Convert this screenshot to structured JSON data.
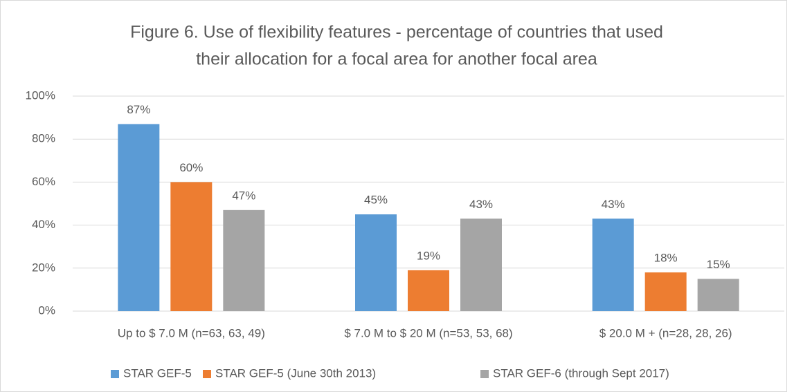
{
  "chart_data": {
    "type": "bar",
    "title": [
      "Figure 6. Use of flexibility features - percentage of countries that used",
      "their allocation for a focal area for another focal area"
    ],
    "categories": [
      "Up to $ 7.0 M (n=63, 63, 49)",
      "$ 7.0 M to $ 20 M (n=53, 53, 68)",
      "$ 20.0 M + (n=28, 28, 26)"
    ],
    "series": [
      {
        "name": "STAR GEF-5",
        "color": "#5b9bd5",
        "values": [
          87,
          45,
          43
        ],
        "value_labels": [
          "87%",
          "45%",
          "43%"
        ]
      },
      {
        "name": "STAR GEF-5 (June 30th 2013)",
        "color": "#ed7d31",
        "values": [
          60,
          19,
          18
        ],
        "value_labels": [
          "60%",
          "19%",
          "18%"
        ]
      },
      {
        "name": "STAR GEF-6 (through Sept 2017)",
        "color": "#a5a5a5",
        "values": [
          47,
          43,
          15
        ],
        "value_labels": [
          "47%",
          "43%",
          "15%"
        ]
      }
    ],
    "ylim": [
      0,
      100
    ],
    "yticks": [
      {
        "value": 0,
        "label": "0%"
      },
      {
        "value": 20,
        "label": "20%"
      },
      {
        "value": 40,
        "label": "40%"
      },
      {
        "value": 60,
        "label": "60%"
      },
      {
        "value": 80,
        "label": "80%"
      },
      {
        "value": 100,
        "label": "100%"
      }
    ],
    "grid": true,
    "legend": "bottom"
  }
}
